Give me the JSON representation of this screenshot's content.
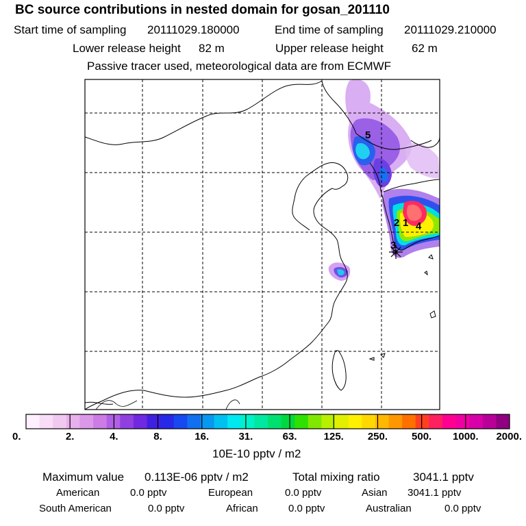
{
  "header": {
    "title": "BC  source contributions in nested domain for gosan_201110",
    "start_label": "Start time of sampling",
    "start_value": "20111029.180000",
    "end_label": "End time of sampling",
    "end_value": "20111029.210000",
    "lower_label": "Lower release height",
    "lower_value": "82 m",
    "upper_label": "Upper release height",
    "upper_value": "62 m",
    "tracer_note": "Passive tracer used, meteorological data are from ECMWF"
  },
  "map": {
    "markers": [
      "5",
      "2",
      "1",
      "4",
      "3"
    ]
  },
  "colorbar": {
    "tick_labels": [
      "0.",
      "2.",
      "4.",
      "8.",
      "16.",
      "31.",
      "63.",
      "125.",
      "250.",
      "500.",
      "1000.",
      "2000."
    ],
    "units": "10E-10 pptv / m2",
    "colors": [
      "#fff0ff",
      "#f8dcf8",
      "#f0c8f0",
      "#e8b0ec",
      "#dc98e8",
      "#cc7ce4",
      "#b060e4",
      "#9040e0",
      "#7028e0",
      "#4020e0",
      "#2828e8",
      "#1848f0",
      "#1070f0",
      "#0898f0",
      "#00c0f0",
      "#00e8f0",
      "#00f0c8",
      "#00e8a0",
      "#00e070",
      "#00d840",
      "#30e000",
      "#80e800",
      "#b8f000",
      "#e0f000",
      "#fff000",
      "#ffd800",
      "#ffb800",
      "#ff9800",
      "#ff7000",
      "#ff4020",
      "#ff2060",
      "#ff0090",
      "#f000a0",
      "#d800a8",
      "#b80098",
      "#900080"
    ]
  },
  "summary": {
    "max_label": "Maximum value",
    "max_value": "0.113E-06 pptv / m2",
    "total_label": "Total mixing ratio",
    "total_value": "3041.1 pptv",
    "regions": [
      {
        "name": "American",
        "value": "0.0 pptv"
      },
      {
        "name": "European",
        "value": "0.0 pptv"
      },
      {
        "name": "Asian",
        "value": "3041.1 pptv"
      },
      {
        "name": "South American",
        "value": "0.0 pptv"
      },
      {
        "name": "African",
        "value": "0.0 pptv"
      },
      {
        "name": "Australian",
        "value": "0.0 pptv"
      }
    ]
  }
}
